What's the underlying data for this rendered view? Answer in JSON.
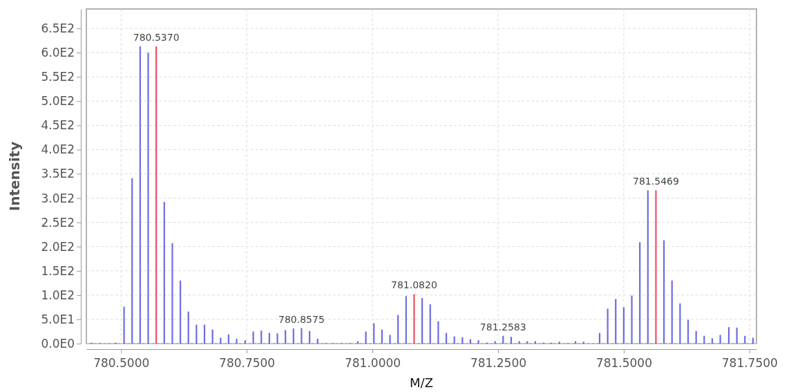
{
  "chart_data": {
    "type": "bar",
    "xlabel": "M/Z",
    "ylabel": "Intensity",
    "xlim": [
      780.431,
      781.764
    ],
    "xticks": [
      {
        "value": 780.5,
        "label": "780.5000"
      },
      {
        "value": 780.75,
        "label": "780.7500"
      },
      {
        "value": 781,
        "label": "781.0000"
      },
      {
        "value": 781.25,
        "label": "781.2500"
      },
      {
        "value": 781.5,
        "label": "781.5000"
      },
      {
        "value": 781.75,
        "label": "781.7500"
      }
    ],
    "ylim": [
      0,
      690
    ],
    "yticks": [
      {
        "value": 0,
        "label": "0.0E0"
      },
      {
        "value": 50,
        "label": "5.0E1"
      },
      {
        "value": 100,
        "label": "1.0E2"
      },
      {
        "value": 150,
        "label": "1.5E2"
      },
      {
        "value": 200,
        "label": "2.0E2"
      },
      {
        "value": 250,
        "label": "2.5E2"
      },
      {
        "value": 300,
        "label": "3.0E2"
      },
      {
        "value": 350,
        "label": "3.5E2"
      },
      {
        "value": 400,
        "label": "4.0E2"
      },
      {
        "value": 450,
        "label": "4.5E2"
      },
      {
        "value": 500,
        "label": "5.0E2"
      },
      {
        "value": 550,
        "label": "5.5E2"
      },
      {
        "value": 600,
        "label": "6.0E2"
      },
      {
        "value": 650,
        "label": "6.5E2"
      }
    ],
    "grid": true,
    "series": [
      {
        "color": "#5252e0",
        "x": [
          780.442,
          780.458,
          780.49,
          780.506,
          780.522,
          780.538,
          780.554,
          780.586,
          780.602,
          780.618,
          780.634,
          780.65,
          780.666,
          780.682,
          780.698,
          780.714,
          780.73,
          780.747,
          780.763,
          780.779,
          780.795,
          780.811,
          780.827,
          780.843,
          780.859,
          780.875,
          780.891,
          780.907,
          780.923,
          780.939,
          780.955,
          780.971,
          780.987,
          781.003,
          781.019,
          781.035,
          781.051,
          781.067,
          781.099,
          781.115,
          781.131,
          781.147,
          781.163,
          781.179,
          781.195,
          781.211,
          781.228,
          781.244,
          781.26,
          781.276,
          781.292,
          781.308,
          781.324,
          781.34,
          781.356,
          781.372,
          781.388,
          781.404,
          781.42,
          781.452,
          781.468,
          781.484,
          781.5,
          781.516,
          781.532,
          781.548,
          781.58,
          781.596,
          781.612,
          781.628,
          781.644,
          781.66,
          781.676,
          781.692,
          781.709,
          781.725,
          781.741,
          781.757
        ],
        "values": [
          2,
          1,
          2,
          76,
          341,
          613,
          600,
          292,
          207,
          130,
          66,
          39,
          39,
          29,
          12,
          19,
          10,
          7,
          25,
          27,
          22,
          21,
          28,
          31,
          32,
          26,
          10,
          1,
          1,
          1,
          1,
          5,
          25,
          42,
          29,
          18,
          59,
          98,
          94,
          81,
          46,
          22,
          15,
          13,
          9,
          7,
          2,
          5,
          16,
          14,
          5,
          5,
          5,
          2,
          2,
          4,
          1,
          5,
          4,
          22,
          72,
          92,
          75,
          99,
          209,
          316,
          213,
          130,
          83,
          49,
          26,
          16,
          11,
          18,
          34,
          33,
          16,
          12
        ]
      },
      {
        "color": "#e8304f",
        "x": [
          780.57,
          781.083,
          781.564
        ],
        "values": [
          613,
          102,
          316
        ]
      }
    ],
    "annotations": [
      {
        "text": "780.5370",
        "x": 780.57,
        "y": 613
      },
      {
        "text": "780.8575",
        "x": 780.859,
        "y": 32
      },
      {
        "text": "781.0820",
        "x": 781.083,
        "y": 102
      },
      {
        "text": "781.2583",
        "x": 781.26,
        "y": 16
      },
      {
        "text": "781.5469",
        "x": 781.564,
        "y": 316
      }
    ]
  }
}
